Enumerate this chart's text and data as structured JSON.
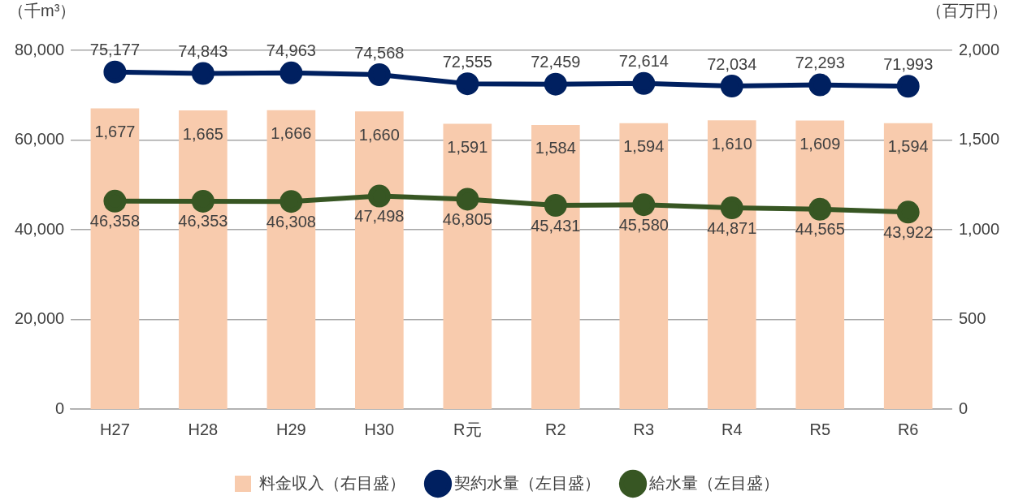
{
  "chart_data": {
    "type": "bar",
    "ylabel": "（千m³）",
    "y2label": "（百万円）",
    "categories": [
      "H27",
      "H28",
      "H29",
      "H30",
      "R元",
      "R2",
      "R3",
      "R4",
      "R5",
      "R6"
    ],
    "series": [
      {
        "name": "料金収入（右目盛）",
        "axis": "y2",
        "color": "#f8cbad",
        "values": [
          1677,
          1665,
          1666,
          1660,
          1591,
          1584,
          1594,
          1610,
          1609,
          1594
        ],
        "value_labels": [
          "1,677",
          "1,665",
          "1,666",
          "1,660",
          "1,591",
          "1,584",
          "1,594",
          "1,610",
          "1,609",
          "1,594"
        ]
      },
      {
        "name": "契約水量（左目盛）",
        "type": "line",
        "color": "#002060",
        "values": [
          75177,
          74843,
          74963,
          74568,
          72555,
          72459,
          72614,
          72034,
          72293,
          71993
        ],
        "value_labels": [
          "75,177",
          "74,843",
          "74,963",
          "74,568",
          "72,555",
          "72,459",
          "72,614",
          "72,034",
          "72,293",
          "71,993"
        ]
      },
      {
        "name": "給水量（左目盛）",
        "type": "line",
        "color": "#375623",
        "values": [
          46358,
          46353,
          46308,
          47498,
          46805,
          45431,
          45580,
          44871,
          44565,
          43922
        ],
        "value_labels": [
          "46,358",
          "46,353",
          "46,308",
          "47,498",
          "46,805",
          "45,431",
          "45,580",
          "44,871",
          "44,565",
          "43,922"
        ]
      }
    ],
    "ylim": [
      0,
      80000
    ],
    "yticks": [
      0,
      {
        "value": 20000,
        "label": "20,000"
      },
      {
        "value": 40000,
        "label": "40,000"
      },
      {
        "value": 60000,
        "label": "60,000"
      },
      {
        "value": 80000,
        "label": "80,000"
      }
    ],
    "y2lim": [
      0,
      2000
    ],
    "y2ticks": [
      0,
      500,
      {
        "value": 1000,
        "label": "1,000"
      },
      {
        "value": 1500,
        "label": "1,500"
      },
      {
        "value": 2000,
        "label": "2,000"
      }
    ],
    "grid": "y",
    "legend": "bottom",
    "marker": "circle",
    "line_style": "solid"
  }
}
